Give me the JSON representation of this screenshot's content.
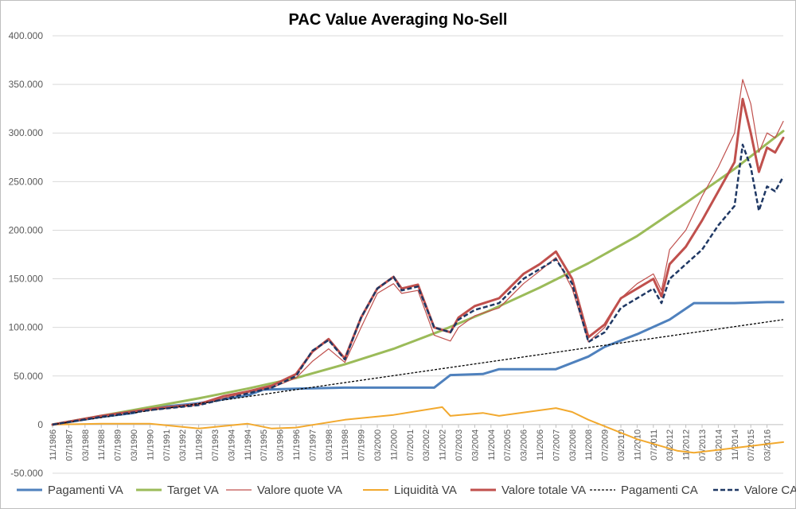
{
  "chart_data": {
    "type": "line",
    "title": "PAC Value Averaging No-Sell",
    "xlabel": "",
    "ylabel": "",
    "ylim": [
      -50000,
      400000
    ],
    "yticks": [
      400000,
      350000,
      300000,
      250000,
      200000,
      150000,
      100000,
      50000,
      0,
      -50000
    ],
    "ytick_labels": [
      "400.000",
      "350.000",
      "300.000",
      "250.000",
      "200.000",
      "150.000",
      "100.000",
      "50.000",
      "0",
      "-50.000"
    ],
    "x_start": "11/1986",
    "x_end": "11/2016",
    "x_tick_labels": [
      "11/1986",
      "07/1987",
      "03/1988",
      "11/1988",
      "07/1989",
      "03/1990",
      "11/1990",
      "07/1991",
      "03/1992",
      "11/1992",
      "07/1993",
      "03/1994",
      "11/1994",
      "07/1995",
      "03/1996",
      "11/1996",
      "07/1997",
      "03/1998",
      "11/1998",
      "07/1999",
      "03/2000",
      "11/2000",
      "07/2001",
      "03/2002",
      "11/2002",
      "07/2003",
      "03/2004",
      "11/2004",
      "07/2005",
      "03/2006",
      "11/2006",
      "07/2007",
      "03/2008",
      "11/2008",
      "07/2009",
      "03/2010",
      "11/2010",
      "07/2011",
      "03/2012",
      "11/2012",
      "07/2013",
      "03/2014",
      "11/2014",
      "07/2015",
      "03/2016"
    ],
    "grid": true,
    "legend_position": "bottom",
    "series": [
      {
        "name": "Pagamenti VA",
        "color": "#4f81bd",
        "style": "solid-thick",
        "points": [
          [
            "11/1986",
            0
          ],
          [
            "11/1988",
            8000
          ],
          [
            "03/1990",
            12000
          ],
          [
            "11/1990",
            17000
          ],
          [
            "11/1992",
            22000
          ],
          [
            "11/1994",
            30000
          ],
          [
            "07/1995",
            36000
          ],
          [
            "11/1996",
            37000
          ],
          [
            "11/1998",
            38000
          ],
          [
            "07/2002",
            38000
          ],
          [
            "03/2003",
            51000
          ],
          [
            "07/2004",
            52000
          ],
          [
            "03/2005",
            57000
          ],
          [
            "07/2007",
            57000
          ],
          [
            "11/2008",
            70000
          ],
          [
            "07/2009",
            80000
          ],
          [
            "11/2010",
            93000
          ],
          [
            "03/2012",
            108000
          ],
          [
            "03/2013",
            125000
          ],
          [
            "11/2014",
            125000
          ],
          [
            "03/2016",
            126000
          ],
          [
            "11/2016",
            126000
          ]
        ]
      },
      {
        "name": "Target VA",
        "color": "#9bbb59",
        "style": "solid-thick",
        "points": [
          [
            "11/1986",
            0
          ],
          [
            "11/1988",
            9000
          ],
          [
            "11/1990",
            18000
          ],
          [
            "11/1992",
            27000
          ],
          [
            "11/1994",
            37000
          ],
          [
            "11/1996",
            48000
          ],
          [
            "11/1998",
            62000
          ],
          [
            "11/2000",
            78000
          ],
          [
            "11/2002",
            97000
          ],
          [
            "11/2004",
            118000
          ],
          [
            "11/2006",
            141000
          ],
          [
            "11/2008",
            166000
          ],
          [
            "11/2010",
            194000
          ],
          [
            "11/2012",
            228000
          ],
          [
            "11/2014",
            263000
          ],
          [
            "11/2016",
            302000
          ]
        ]
      },
      {
        "name": "Valore quote VA",
        "color": "#c0504d",
        "style": "solid-thin",
        "points": [
          [
            "11/1986",
            0
          ],
          [
            "11/1988",
            8500
          ],
          [
            "11/1990",
            15000
          ],
          [
            "11/1992",
            20000
          ],
          [
            "11/1993",
            27000
          ],
          [
            "11/1994",
            33000
          ],
          [
            "11/1995",
            38000
          ],
          [
            "11/1996",
            48000
          ],
          [
            "07/1997",
            65000
          ],
          [
            "03/1998",
            78000
          ],
          [
            "11/1998",
            64000
          ],
          [
            "07/1999",
            100000
          ],
          [
            "03/2000",
            135000
          ],
          [
            "11/2000",
            145000
          ],
          [
            "03/2001",
            135000
          ],
          [
            "11/2001",
            138000
          ],
          [
            "07/2002",
            92000
          ],
          [
            "03/2003",
            86000
          ],
          [
            "07/2003",
            100000
          ],
          [
            "03/2004",
            112000
          ],
          [
            "03/2005",
            120000
          ],
          [
            "03/2006",
            145000
          ],
          [
            "11/2006",
            158000
          ],
          [
            "07/2007",
            172000
          ],
          [
            "03/2008",
            140000
          ],
          [
            "11/2008",
            85000
          ],
          [
            "07/2009",
            100000
          ],
          [
            "03/2010",
            130000
          ],
          [
            "11/2010",
            145000
          ],
          [
            "07/2011",
            155000
          ],
          [
            "11/2011",
            138000
          ],
          [
            "03/2012",
            180000
          ],
          [
            "11/2012",
            200000
          ],
          [
            "07/2013",
            235000
          ],
          [
            "03/2014",
            265000
          ],
          [
            "11/2014",
            300000
          ],
          [
            "03/2015",
            355000
          ],
          [
            "07/2015",
            330000
          ],
          [
            "11/2015",
            280000
          ],
          [
            "03/2016",
            300000
          ],
          [
            "07/2016",
            295000
          ],
          [
            "11/2016",
            312000
          ]
        ]
      },
      {
        "name": "Liquidità VA",
        "color": "#f2a92e",
        "style": "solid",
        "points": [
          [
            "11/1986",
            0
          ],
          [
            "11/1988",
            1000
          ],
          [
            "11/1990",
            1000
          ],
          [
            "11/1992",
            -4000
          ],
          [
            "11/1994",
            1000
          ],
          [
            "11/1995",
            -4000
          ],
          [
            "11/1996",
            -3000
          ],
          [
            "11/1998",
            5000
          ],
          [
            "11/2000",
            10000
          ],
          [
            "11/2002",
            18000
          ],
          [
            "03/2003",
            9000
          ],
          [
            "07/2004",
            12000
          ],
          [
            "03/2005",
            9000
          ],
          [
            "07/2007",
            17000
          ],
          [
            "03/2008",
            13000
          ],
          [
            "11/2008",
            5000
          ],
          [
            "11/2010",
            -15000
          ],
          [
            "07/2012",
            -27000
          ],
          [
            "03/2013",
            -29000
          ],
          [
            "11/2014",
            -24000
          ],
          [
            "11/2016",
            -18000
          ]
        ]
      },
      {
        "name": "Valore totale VA",
        "color": "#c0504d",
        "style": "solid-thick",
        "points": [
          [
            "11/1986",
            0
          ],
          [
            "11/1988",
            9000
          ],
          [
            "11/1990",
            16000
          ],
          [
            "11/1992",
            21000
          ],
          [
            "11/1993",
            29000
          ],
          [
            "11/1994",
            34000
          ],
          [
            "11/1995",
            40000
          ],
          [
            "11/1996",
            52000
          ],
          [
            "07/1997",
            75000
          ],
          [
            "03/1998",
            88000
          ],
          [
            "11/1998",
            68000
          ],
          [
            "07/1999",
            110000
          ],
          [
            "03/2000",
            140000
          ],
          [
            "11/2000",
            152000
          ],
          [
            "03/2001",
            140000
          ],
          [
            "11/2001",
            144000
          ],
          [
            "07/2002",
            100000
          ],
          [
            "03/2003",
            95000
          ],
          [
            "07/2003",
            110000
          ],
          [
            "03/2004",
            122000
          ],
          [
            "03/2005",
            130000
          ],
          [
            "03/2006",
            155000
          ],
          [
            "11/2006",
            165000
          ],
          [
            "07/2007",
            178000
          ],
          [
            "03/2008",
            150000
          ],
          [
            "11/2008",
            90000
          ],
          [
            "07/2009",
            103000
          ],
          [
            "03/2010",
            130000
          ],
          [
            "11/2010",
            140000
          ],
          [
            "07/2011",
            150000
          ],
          [
            "11/2011",
            132000
          ],
          [
            "03/2012",
            165000
          ],
          [
            "11/2012",
            183000
          ],
          [
            "07/2013",
            210000
          ],
          [
            "03/2014",
            240000
          ],
          [
            "11/2014",
            270000
          ],
          [
            "03/2015",
            335000
          ],
          [
            "07/2015",
            300000
          ],
          [
            "11/2015",
            260000
          ],
          [
            "03/2016",
            285000
          ],
          [
            "07/2016",
            280000
          ],
          [
            "11/2016",
            295000
          ]
        ]
      },
      {
        "name": "Pagamenti CA",
        "color": "#000000",
        "style": "dotted",
        "points": [
          [
            "11/1986",
            0
          ],
          [
            "11/2016",
            108000
          ]
        ]
      },
      {
        "name": "Valore CA",
        "color": "#1f3864",
        "style": "dashed-thick",
        "points": [
          [
            "11/1986",
            0
          ],
          [
            "11/1988",
            8000
          ],
          [
            "11/1990",
            15000
          ],
          [
            "11/1992",
            20000
          ],
          [
            "11/1993",
            26000
          ],
          [
            "11/1994",
            32000
          ],
          [
            "11/1995",
            38000
          ],
          [
            "11/1996",
            50000
          ],
          [
            "07/1997",
            76000
          ],
          [
            "03/1998",
            87000
          ],
          [
            "11/1998",
            67000
          ],
          [
            "07/1999",
            110000
          ],
          [
            "03/2000",
            140000
          ],
          [
            "11/2000",
            152000
          ],
          [
            "03/2001",
            138000
          ],
          [
            "11/2001",
            142000
          ],
          [
            "07/2002",
            100000
          ],
          [
            "03/2003",
            95000
          ],
          [
            "07/2003",
            108000
          ],
          [
            "03/2004",
            118000
          ],
          [
            "03/2005",
            125000
          ],
          [
            "03/2006",
            150000
          ],
          [
            "11/2006",
            160000
          ],
          [
            "07/2007",
            170000
          ],
          [
            "03/2008",
            145000
          ],
          [
            "11/2008",
            85000
          ],
          [
            "07/2009",
            95000
          ],
          [
            "03/2010",
            120000
          ],
          [
            "11/2010",
            130000
          ],
          [
            "07/2011",
            140000
          ],
          [
            "11/2011",
            125000
          ],
          [
            "03/2012",
            150000
          ],
          [
            "11/2012",
            165000
          ],
          [
            "07/2013",
            180000
          ],
          [
            "03/2014",
            205000
          ],
          [
            "11/2014",
            225000
          ],
          [
            "03/2015",
            288000
          ],
          [
            "07/2015",
            265000
          ],
          [
            "11/2015",
            220000
          ],
          [
            "03/2016",
            245000
          ],
          [
            "07/2016",
            240000
          ],
          [
            "11/2016",
            255000
          ]
        ]
      }
    ]
  }
}
